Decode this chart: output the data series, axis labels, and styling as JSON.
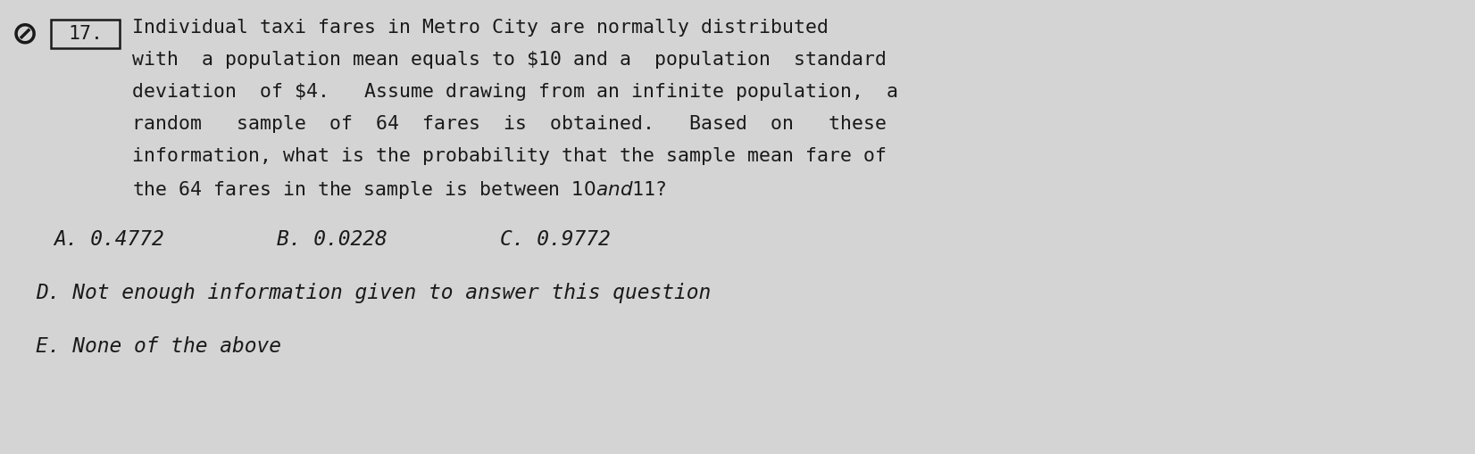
{
  "background_color": "#d4d4d4",
  "text_color": "#1a1a1a",
  "question_number": "17.",
  "line1": "Individual taxi fares in Metro City are normally distributed",
  "line2": "with  a population mean equals to $10 and a  population  standard",
  "line3": "deviation  of $4.   Assume drawing from an infinite population,  a",
  "line4": "random   sample  of  64  fares  is  obtained.   Based  on   these",
  "line5": "information, what is the probability that the sample mean fare of",
  "line6": "the 64 fares in the sample is between $10 and $11?",
  "answer_line1_A": "A. 0.4772",
  "answer_line1_B": "B. 0.0228",
  "answer_line1_C": "C. 0.9772",
  "answer_line2": "D. Not enough information given to answer this question",
  "answer_line3": "E. None of the above",
  "font_size_q": 15.5,
  "font_size_a": 16.5,
  "font_family": "monospace"
}
